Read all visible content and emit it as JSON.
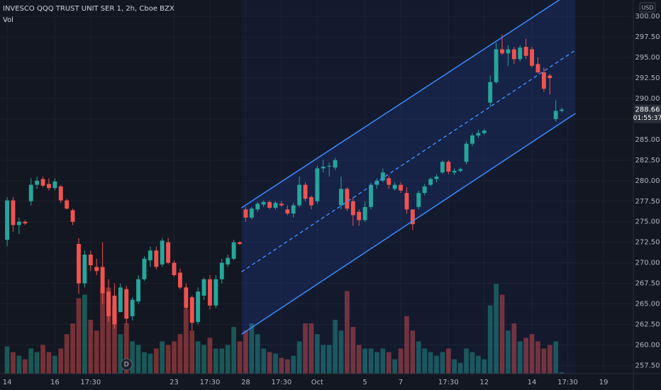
{
  "chart_data": {
    "type": "candlestick",
    "title": "INVESCO QQQ TRUST UNIT SER 1, 2h, Cboe BZX",
    "volume_label": "Vol",
    "currency": "USD",
    "countdown": "01:55:37",
    "last_price": 288.66,
    "up_color": "#26a69a",
    "down_color": "#ef5350",
    "grid": true,
    "xlim": [
      -1.2,
      105
    ],
    "ylim": [
      256.5,
      302
    ],
    "volume_ylim": [
      0,
      520
    ],
    "yticks": [
      {
        "value": 257.5,
        "label": "257.50"
      },
      {
        "value": 260,
        "label": "260.00"
      },
      {
        "value": 262.5,
        "label": "262.50"
      },
      {
        "value": 265,
        "label": "265.00"
      },
      {
        "value": 267.5,
        "label": "267.50"
      },
      {
        "value": 270,
        "label": "270.00"
      },
      {
        "value": 272.5,
        "label": "272.50"
      },
      {
        "value": 275,
        "label": "275.00"
      },
      {
        "value": 277.5,
        "label": "277.50"
      },
      {
        "value": 280,
        "label": "280.00"
      },
      {
        "value": 282.5,
        "label": "282.50"
      },
      {
        "value": 285,
        "label": "285.00"
      },
      {
        "value": 287.5,
        "label": "287.50"
      },
      {
        "value": 290,
        "label": "290.00"
      },
      {
        "value": 292.5,
        "label": "292.50"
      },
      {
        "value": 295,
        "label": "295.00"
      },
      {
        "value": 297.5,
        "label": "297.50"
      },
      {
        "value": 300,
        "label": "300.00"
      }
    ],
    "xticks": [
      {
        "value": 0,
        "label": "14"
      },
      {
        "value": 8,
        "label": "16"
      },
      {
        "value": 14,
        "label": "17:30"
      },
      {
        "value": 28,
        "label": "23"
      },
      {
        "value": 34,
        "label": "17:30"
      },
      {
        "value": 40,
        "label": "28"
      },
      {
        "value": 46,
        "label": "17:30"
      },
      {
        "value": 52,
        "label": "Oct"
      },
      {
        "value": 60,
        "label": "5"
      },
      {
        "value": 66,
        "label": "7"
      },
      {
        "value": 74,
        "label": "17:30"
      },
      {
        "value": 80,
        "label": "12"
      },
      {
        "value": 88,
        "label": "14"
      },
      {
        "value": 94,
        "label": "17:30"
      },
      {
        "value": 100,
        "label": "19"
      }
    ],
    "markers": [
      {
        "label": "D",
        "x": 20
      }
    ],
    "channel": {
      "color": "#2962ff",
      "start": 39.3,
      "end": 95.3,
      "upper": [
        276.7,
        303.3
      ],
      "middle": [
        268.9,
        295.9
      ],
      "lower": [
        261.3,
        288.2
      ]
    },
    "open": [
      272.8,
      277.6,
      274.6,
      275,
      277.5,
      279.5,
      280.2,
      279.6,
      279.1,
      279.3,
      277.6,
      276.4,
      272.3,
      267.5,
      271,
      269.5,
      269.5,
      266.5,
      266,
      264,
      266.8,
      263.5,
      265.3,
      268,
      270.3,
      271.5,
      269.8,
      272.5,
      270,
      268.8,
      267,
      265.8,
      262.8,
      266,
      268,
      264.8,
      268,
      269.8,
      270.5,
      272.5,
      276.5,
      275.5,
      276.5,
      277.1,
      277.4,
      276.7,
      277.2,
      276.5,
      276,
      277,
      279.5,
      278,
      277.5,
      281.5,
      281.8,
      281.6,
      277,
      279,
      277.5,
      276.2,
      275.2,
      276.8,
      279.5,
      280,
      280.3,
      279,
      279.5,
      278.5,
      276.5,
      276.8,
      278.5,
      279.5,
      280.2,
      281,
      282.3,
      281,
      281.2,
      282.3,
      284.5,
      285.5,
      285.8,
      289.5,
      292,
      296,
      295.5,
      296,
      294.8,
      296.3,
      296,
      294.2,
      293.2,
      292.8,
      287.5,
      288.5
    ],
    "high": [
      278,
      278,
      275.5,
      275.2,
      280.3,
      280.5,
      280.5,
      280.3,
      280.3,
      279.5,
      277.8,
      276.6,
      273,
      271.5,
      271.5,
      270.5,
      272.5,
      268,
      267.5,
      267.5,
      267.2,
      265.8,
      268.5,
      270.8,
      272,
      272,
      273,
      273,
      270.3,
      269.3,
      267.5,
      266,
      267,
      268.2,
      268.5,
      268.5,
      270.5,
      271,
      272.8,
      272.6,
      276.8,
      276.8,
      277.4,
      277.6,
      277.6,
      277.5,
      277.5,
      277,
      277.3,
      280.5,
      279.8,
      278.2,
      281.8,
      282.5,
      282.2,
      282.8,
      280.5,
      279.2,
      278,
      276.5,
      277.5,
      279.8,
      280.3,
      281.5,
      280.6,
      279.8,
      279.8,
      279.2,
      276.5,
      278.8,
      279.6,
      280.4,
      280.8,
      282.5,
      282.5,
      281.5,
      281.6,
      284.8,
      285.8,
      286.2,
      286.3,
      292.8,
      296.8,
      297.8,
      296.5,
      296.3,
      296.5,
      297.3,
      296.3,
      295,
      293.8,
      293,
      289.8,
      288.9
    ],
    "low": [
      272,
      273.8,
      273.5,
      274.6,
      277,
      279,
      279.2,
      278.8,
      278.8,
      277.3,
      276.5,
      274.6,
      266.2,
      267,
      269,
      268.5,
      265,
      262.8,
      262,
      264,
      262.5,
      263,
      265,
      267.8,
      269.5,
      269.2,
      269.5,
      269.8,
      268.3,
      266.8,
      264.3,
      261.8,
      262.5,
      265.5,
      264.3,
      264.5,
      267.5,
      269.5,
      270.3,
      272.2,
      275,
      275.3,
      276.2,
      276.8,
      276.5,
      276.5,
      276.8,
      275.8,
      275.5,
      276.8,
      277.5,
      276.5,
      277.2,
      281,
      280.5,
      281.3,
      276.5,
      276.3,
      274.5,
      274.5,
      275,
      276.5,
      279,
      279.8,
      279,
      278.8,
      278.5,
      276,
      274,
      276.5,
      278.2,
      279.3,
      279.8,
      280.8,
      280.8,
      280.7,
      281,
      282,
      284.2,
      285.2,
      285.6,
      289,
      291.8,
      295.3,
      294,
      294.2,
      294.5,
      294.8,
      293.8,
      293,
      290.8,
      290.5,
      287.2,
      288.3
    ],
    "close": [
      277.6,
      274.6,
      275,
      274.8,
      279.5,
      280,
      279.4,
      279.1,
      279.9,
      277.6,
      276.6,
      275,
      267.5,
      271,
      269.7,
      269,
      266.3,
      263.5,
      262.5,
      267,
      263.2,
      265.5,
      268,
      270.5,
      271.5,
      269.5,
      272.7,
      270,
      268.5,
      267,
      264.5,
      262.7,
      266.5,
      268,
      264.8,
      268,
      270,
      270.6,
      272.5,
      272.3,
      275.5,
      276.6,
      277.2,
      277.4,
      276.7,
      277.3,
      277,
      276,
      277,
      279.5,
      277.8,
      277,
      281.5,
      281.7,
      281.8,
      282.5,
      279,
      276.6,
      275.8,
      275.2,
      276.8,
      279.5,
      280,
      281,
      279.5,
      279.5,
      278.8,
      276.5,
      274.7,
      278.5,
      279.3,
      280.2,
      280.5,
      282.3,
      281.1,
      281.2,
      281.4,
      284.5,
      285.5,
      285.8,
      286.1,
      292,
      296,
      295.5,
      296,
      294.8,
      296.2,
      295.2,
      294,
      293.2,
      291.2,
      292.5,
      288.5,
      288.66
    ],
    "volume": [
      38,
      30,
      25,
      20,
      35,
      30,
      40,
      30,
      25,
      35,
      55,
      70,
      105,
      110,
      75,
      60,
      120,
      120,
      95,
      55,
      70,
      45,
      40,
      30,
      28,
      35,
      45,
      40,
      45,
      55,
      90,
      60,
      45,
      40,
      50,
      35,
      35,
      40,
      65,
      45,
      60,
      70,
      55,
      35,
      30,
      28,
      22,
      20,
      25,
      45,
      70,
      70,
      55,
      40,
      40,
      75,
      60,
      115,
      65,
      40,
      35,
      35,
      30,
      35,
      30,
      20,
      35,
      80,
      60,
      45,
      35,
      30,
      25,
      30,
      35,
      20,
      15,
      35,
      30,
      25,
      20,
      95,
      125,
      110,
      60,
      70,
      45,
      50,
      55,
      45,
      35,
      40,
      45,
      2
    ]
  }
}
